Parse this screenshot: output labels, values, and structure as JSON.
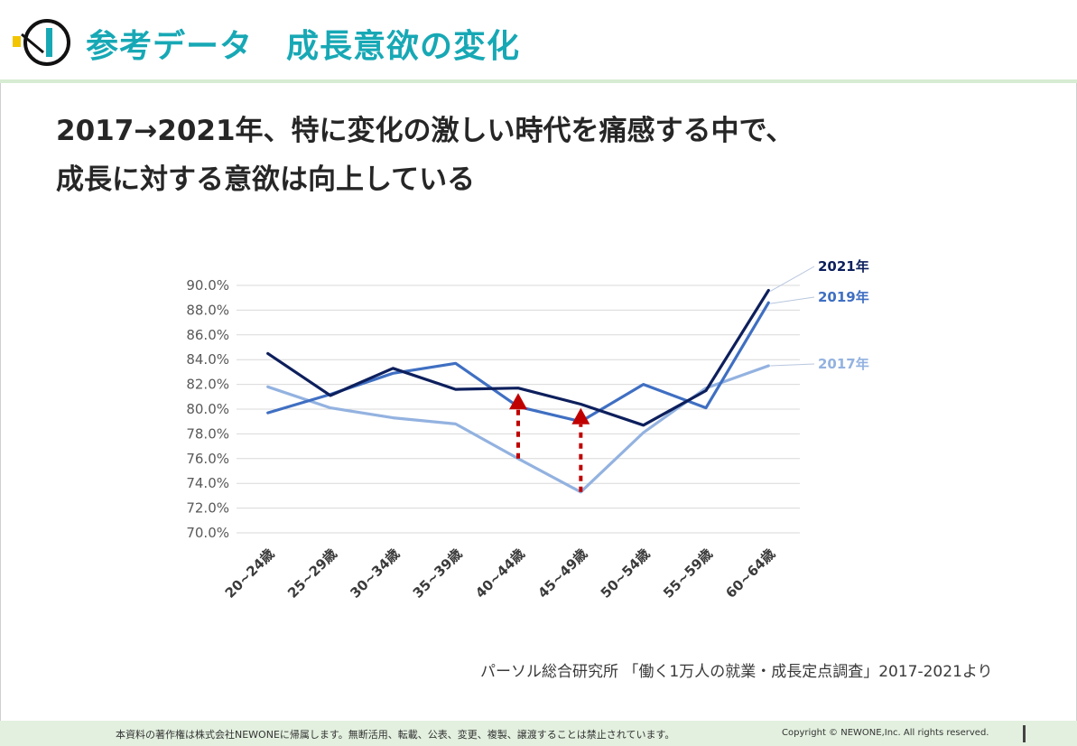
{
  "header": {
    "title": "参考データ　成長意欲の変化"
  },
  "headline": {
    "line1": "2017→2021年、特に変化の激しい時代を痛感する中で、",
    "line2": "成長に対する意欲は向上している"
  },
  "colors": {
    "accent": "#17a8b5",
    "series_2021": "#0d1f5c",
    "series_2019": "#3f6fc2",
    "series_2017": "#93b2e0",
    "arrow": "#c00000",
    "footer_bg": "#e3f0df"
  },
  "chart_data": {
    "type": "line",
    "categories": [
      "20~24歳",
      "25~29歳",
      "30~34歳",
      "35~39歳",
      "40~44歳",
      "45~49歳",
      "50~54歳",
      "55~59歳",
      "60~64歳"
    ],
    "y_tick_labels": [
      "90.0%",
      "88.0%",
      "86.0%",
      "84.0%",
      "82.0%",
      "80.0%",
      "78.0%",
      "76.0%",
      "74.0%",
      "72.0%",
      "70.0%"
    ],
    "ylim": [
      70,
      90
    ],
    "y_unit": "%",
    "grid": true,
    "legend": "right, labels at line ends",
    "series": [
      {
        "name": "2021年",
        "values": [
          84.5,
          81.1,
          83.3,
          81.6,
          81.7,
          80.4,
          78.7,
          81.5,
          89.6
        ]
      },
      {
        "name": "2019年",
        "values": [
          79.7,
          81.2,
          82.9,
          83.7,
          80.2,
          79.0,
          82.0,
          80.1,
          88.6
        ]
      },
      {
        "name": "2017年",
        "values": [
          81.8,
          80.1,
          79.3,
          78.8,
          76.0,
          73.3,
          78.1,
          81.7,
          83.5
        ]
      }
    ],
    "annotations": [
      {
        "type": "arrow-up",
        "category": "40~44歳",
        "from": 76.0,
        "to": 81.0
      },
      {
        "type": "arrow-up",
        "category": "45~49歳",
        "from": 73.3,
        "to": 79.8
      }
    ]
  },
  "source": "パーソル総合研究所 「働く1万人の就業・成長定点調査」2017-2021より",
  "footer": {
    "notice": "本資料の著作権は株式会社NEWONEに帰属します。無断活用、転載、公表、変更、複製、譲渡することは禁止されています。",
    "copyright": "Copyright © NEWONE,Inc.  All rights reserved."
  }
}
